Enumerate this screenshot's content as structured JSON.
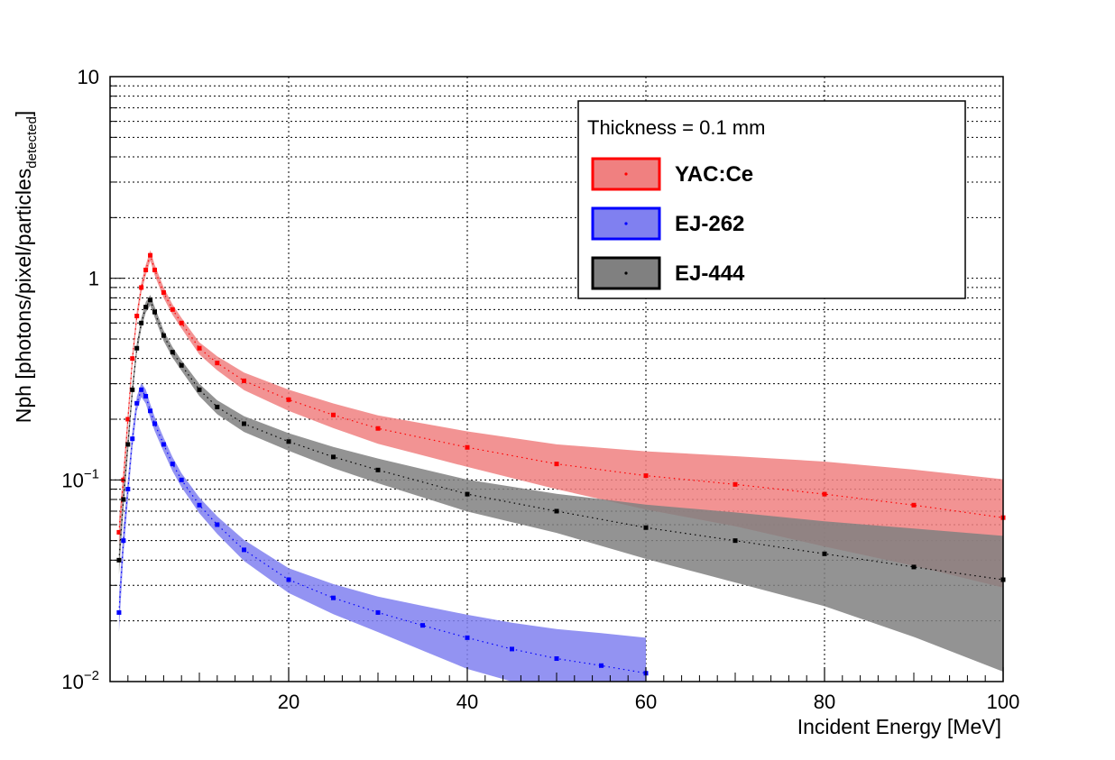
{
  "chart_data": {
    "type": "scatter",
    "title": "",
    "xlabel": "Incident Energy [MeV]",
    "ylabel_main": "Nph [photons/pixel/particles",
    "ylabel_sub": "detected",
    "ylabel_close": "]",
    "xlim": [
      0,
      100
    ],
    "ylim": [
      0.01,
      10
    ],
    "yscale": "log",
    "grid": true,
    "x_ticks": [
      20,
      40,
      60,
      80,
      100
    ],
    "x_tick_labels": [
      "20",
      "40",
      "60",
      "80",
      "100"
    ],
    "y_ticks": [
      {
        "value": 10,
        "base": "10",
        "exp": ""
      },
      {
        "value": 1,
        "base": "1",
        "exp": ""
      },
      {
        "value": 0.1,
        "base": "10",
        "exp": "−1"
      },
      {
        "value": 0.01,
        "base": "10",
        "exp": "−2"
      }
    ],
    "legend": {
      "header": "Thickness  = 0.1 mm",
      "position": "top-right",
      "entries": [
        {
          "name": "YAC:Ce",
          "color": "#ff0000",
          "fill": "#f08080"
        },
        {
          "name": "EJ-262",
          "color": "#0000ff",
          "fill": "#8080f0"
        },
        {
          "name": "EJ-444",
          "color": "#000000",
          "fill": "#808080"
        }
      ]
    },
    "series": [
      {
        "name": "YAC:Ce",
        "color": "#ff0000",
        "band_fill": "#f08080",
        "x": [
          1,
          1.5,
          2,
          2.5,
          3,
          3.5,
          4,
          4.5,
          5,
          6,
          7,
          8,
          10,
          12,
          15,
          20,
          25,
          30,
          40,
          50,
          60,
          70,
          80,
          90,
          100
        ],
        "y": [
          0.055,
          0.1,
          0.2,
          0.4,
          0.65,
          0.9,
          1.1,
          1.3,
          1.1,
          0.85,
          0.7,
          0.6,
          0.45,
          0.38,
          0.31,
          0.25,
          0.21,
          0.18,
          0.145,
          0.12,
          0.105,
          0.095,
          0.085,
          0.075,
          0.065
        ],
        "rel_err": [
          0.15,
          0.12,
          0.1,
          0.08,
          0.06,
          0.06,
          0.06,
          0.06,
          0.06,
          0.06,
          0.06,
          0.06,
          0.07,
          0.08,
          0.1,
          0.12,
          0.14,
          0.16,
          0.2,
          0.25,
          0.32,
          0.38,
          0.45,
          0.5,
          0.55
        ]
      },
      {
        "name": "EJ-444",
        "color": "#000000",
        "band_fill": "#808080",
        "x": [
          1,
          1.5,
          2,
          2.5,
          3,
          3.5,
          4,
          4.5,
          5,
          6,
          7,
          8,
          10,
          12,
          15,
          20,
          25,
          30,
          40,
          50,
          60,
          70,
          80,
          90,
          100
        ],
        "y": [
          0.04,
          0.08,
          0.15,
          0.28,
          0.45,
          0.6,
          0.72,
          0.78,
          0.68,
          0.52,
          0.43,
          0.37,
          0.28,
          0.23,
          0.19,
          0.155,
          0.13,
          0.112,
          0.085,
          0.07,
          0.058,
          0.05,
          0.043,
          0.037,
          0.032
        ],
        "rel_err": [
          0.15,
          0.12,
          0.1,
          0.08,
          0.06,
          0.06,
          0.06,
          0.06,
          0.06,
          0.06,
          0.06,
          0.06,
          0.07,
          0.08,
          0.09,
          0.1,
          0.12,
          0.14,
          0.18,
          0.22,
          0.3,
          0.38,
          0.45,
          0.55,
          0.65
        ]
      },
      {
        "name": "EJ-262",
        "color": "#0000ff",
        "band_fill": "#8080f0",
        "x": [
          1,
          1.5,
          2,
          2.5,
          3,
          3.5,
          4,
          4.5,
          5,
          6,
          7,
          8,
          10,
          12,
          15,
          20,
          25,
          30,
          35,
          40,
          45,
          50,
          55,
          60
        ],
        "y": [
          0.022,
          0.05,
          0.09,
          0.16,
          0.24,
          0.28,
          0.26,
          0.22,
          0.19,
          0.15,
          0.12,
          0.1,
          0.075,
          0.06,
          0.045,
          0.032,
          0.026,
          0.022,
          0.019,
          0.0165,
          0.0145,
          0.013,
          0.012,
          0.011
        ],
        "rel_err": [
          0.2,
          0.15,
          0.12,
          0.1,
          0.08,
          0.08,
          0.08,
          0.08,
          0.08,
          0.08,
          0.08,
          0.08,
          0.09,
          0.1,
          0.12,
          0.14,
          0.17,
          0.2,
          0.25,
          0.3,
          0.35,
          0.4,
          0.45,
          0.5
        ]
      }
    ]
  }
}
